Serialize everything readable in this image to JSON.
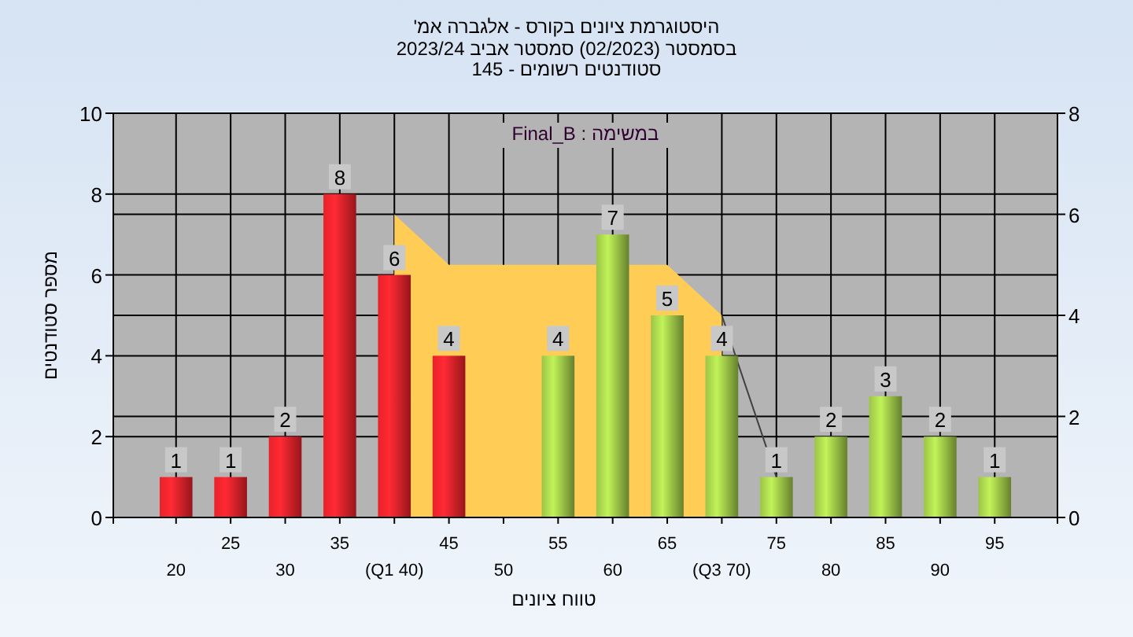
{
  "chart_data": {
    "type": "bar",
    "title": "היסטוגרמת ציונים בקורס - אלגברה אמ'",
    "subtitle": "בסמסטר  (02/2023)  סמסטר אביב 2023/24\nסטודנטים רשומים - 145",
    "xlabel": "טווח ציונים",
    "ylabel": "מספר סטודנטים",
    "categories": [
      "20",
      "25",
      "30",
      "35",
      "(Q1 40)",
      "45",
      "50",
      "55",
      "60",
      "65",
      "(Q3 70)",
      "75",
      "80",
      "85",
      "90",
      "95"
    ],
    "series": [
      {
        "color": "#e8222a",
        "values": [
          1,
          1,
          2,
          8,
          6,
          4,
          null,
          null,
          null,
          null,
          null,
          null,
          null,
          null,
          null,
          null
        ],
        "value_labels": [
          "1",
          "1",
          "2",
          "8",
          "6",
          "4",
          null,
          null,
          null,
          null,
          null,
          null,
          null,
          null,
          null,
          null
        ]
      },
      {
        "color": "#9cc447",
        "values": [
          null,
          null,
          null,
          null,
          null,
          null,
          null,
          4,
          7,
          5,
          4,
          1,
          2,
          3,
          2,
          1
        ],
        "value_labels": [
          null,
          null,
          null,
          null,
          null,
          null,
          null,
          "4",
          "7",
          "5",
          "4",
          "1",
          "2",
          "3",
          "2",
          "1"
        ]
      },
      {
        "type": "area",
        "axis": "y2",
        "color": "#ffcc55",
        "values": [
          null,
          null,
          null,
          null,
          6,
          5,
          null,
          null,
          null,
          5,
          4,
          null,
          null,
          null,
          null,
          null
        ]
      },
      {
        "type": "line",
        "axis": "y2",
        "color": "#404040",
        "values": [
          null,
          null,
          null,
          null,
          null,
          null,
          null,
          null,
          null,
          null,
          4,
          0.8,
          null,
          null,
          null,
          null
        ]
      }
    ],
    "ylim": [
      0,
      10
    ],
    "yticks": [
      0,
      2,
      4,
      6,
      8,
      10
    ],
    "y2lim": [
      0,
      8
    ],
    "y2ticks": [
      0,
      2,
      4,
      6,
      8
    ],
    "grid": true,
    "annotations": [
      "במשימה : Final_B"
    ]
  }
}
